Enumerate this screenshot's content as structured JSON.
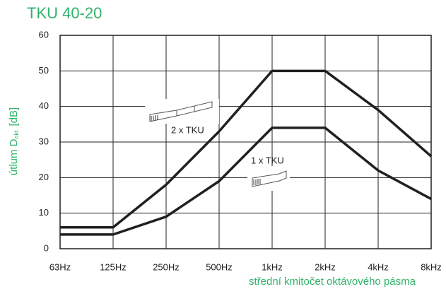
{
  "chart_data": {
    "type": "line",
    "title": "TKU 40-20",
    "x_label": "střední kmitočet oktávového pásma",
    "y_label": {
      "main": "útlum D",
      "sub": "okt",
      "unit": "[dB]"
    },
    "categories": [
      "63Hz",
      "125Hz",
      "250Hz",
      "500Hz",
      "1kHz",
      "2kHz",
      "4kHz",
      "8kHz"
    ],
    "series": [
      {
        "name": "2 x TKU",
        "color": "#231f20",
        "values": [
          6,
          6,
          18,
          33,
          50,
          50,
          39,
          26
        ]
      },
      {
        "name": "1 x TKU",
        "color": "#231f20",
        "values": [
          4,
          4,
          9,
          19,
          34,
          34,
          22,
          14
        ]
      }
    ],
    "ylim": [
      0,
      60
    ],
    "yticks": [
      0,
      10,
      20,
      30,
      40,
      50,
      60
    ],
    "grid": true,
    "accent_color": "#2fb36a"
  }
}
